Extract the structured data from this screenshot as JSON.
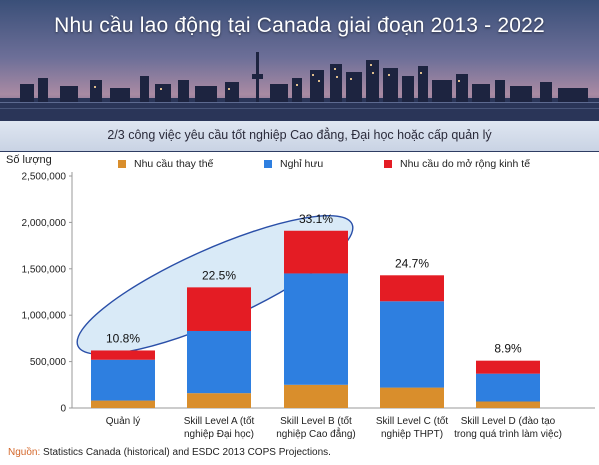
{
  "banner": {
    "title": "Nhu cầu lao động tại Canada giai đoạn 2013 - 2022",
    "subtitle": "2/3 công việc yêu cầu tốt nghiệp Cao đẳng, Đại học hoặc cấp quản lý"
  },
  "source": {
    "label": "Nguồn:",
    "text": "Statistics Canada (historical) and ESDC 2013 COPS Projections."
  },
  "colors": {
    "replacement": "#d98e2c",
    "retirement": "#2e7fe0",
    "expansion": "#e41c24"
  },
  "chart_data": {
    "type": "bar",
    "stacked": true,
    "ylabel": "Số lượng",
    "ylim": [
      0,
      2500000
    ],
    "yticks": [
      "0",
      "500,000",
      "1,000,000",
      "1,500,000",
      "2,000,000",
      "2,500,000"
    ],
    "categories": [
      [
        "Quản lý"
      ],
      [
        "Skill Level A (tốt",
        "nghiệp Đại học)"
      ],
      [
        "Skill Level B (tốt",
        "nghiệp Cao đẳng)"
      ],
      [
        "Skill Level C (tốt",
        "nghiệp THPT)"
      ],
      [
        "Skill Level D (đào tạo",
        "trong quá trình làm việc)"
      ]
    ],
    "series": [
      {
        "name": "Nhu cầu thay thế",
        "values": [
          80000,
          160000,
          250000,
          220000,
          70000
        ]
      },
      {
        "name": "Nghỉ hưu",
        "values": [
          440000,
          670000,
          1200000,
          930000,
          300000
        ]
      },
      {
        "name": "Nhu cầu do mở rộng kinh tế",
        "values": [
          100000,
          470000,
          460000,
          280000,
          140000
        ]
      }
    ],
    "data_labels": [
      "10.8%",
      "22.5%",
      "33.1%",
      "24.7%",
      "8.9%"
    ],
    "grid": false
  }
}
